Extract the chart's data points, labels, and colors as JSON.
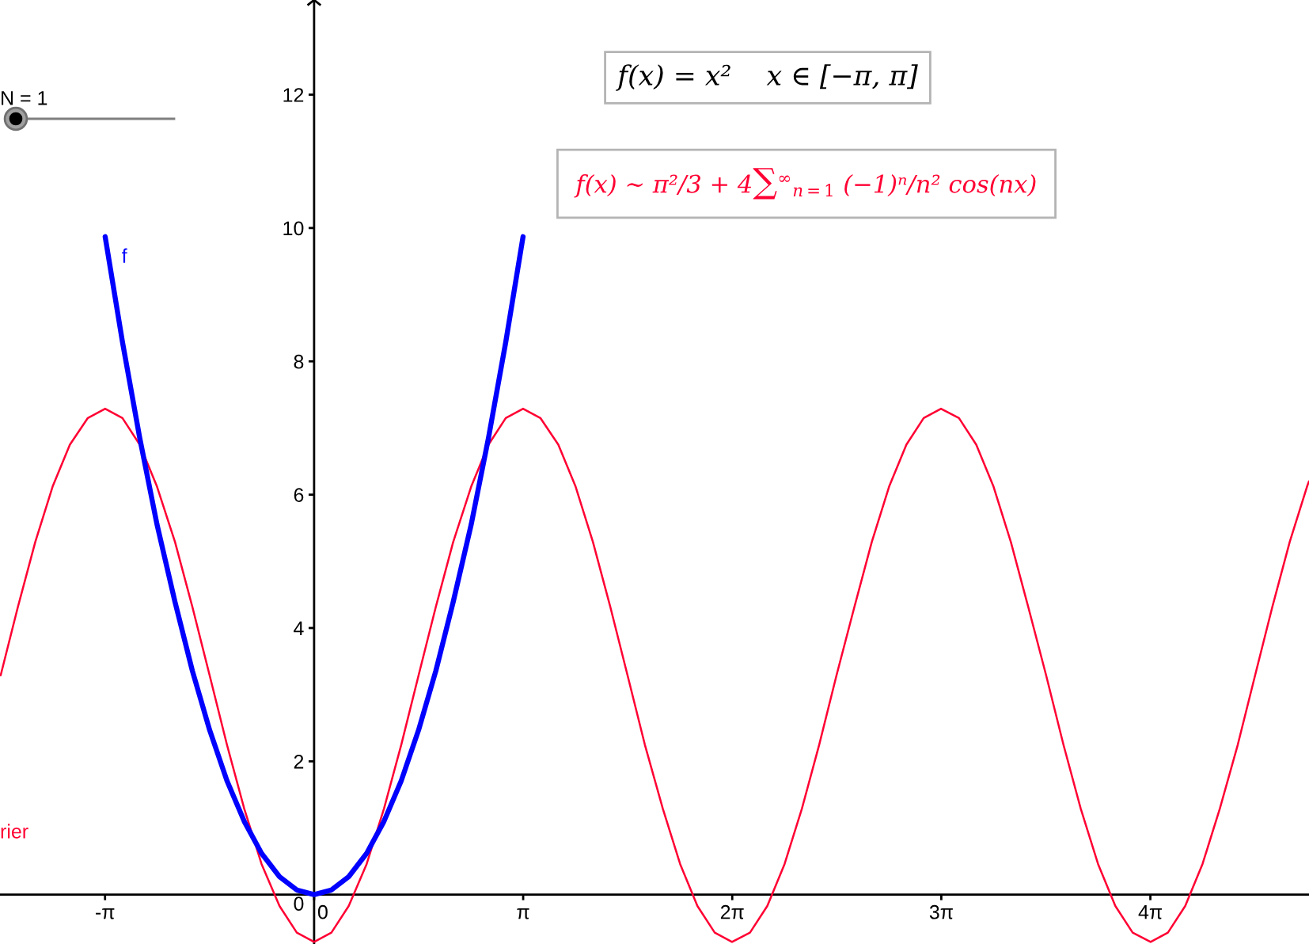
{
  "chart_data": {
    "type": "line",
    "xlim": [
      -4.72,
      14.95
    ],
    "ylim": [
      -0.74,
      13.42
    ],
    "xticks": [
      {
        "value": -3.1416,
        "label": "-π"
      },
      0,
      {
        "value": 3.1416,
        "label": "π"
      },
      {
        "value": 6.2832,
        "label": "2π"
      },
      {
        "value": 9.4248,
        "label": "3π"
      },
      {
        "value": 12.5664,
        "label": "4π"
      }
    ],
    "yticks": [
      0,
      2,
      4,
      6,
      8,
      10,
      12
    ],
    "series": [
      {
        "color": "#ff0033",
        "x": [
          -4.71,
          -4.45,
          -4.19,
          -3.93,
          -3.67,
          -3.4,
          -3.14,
          -2.88,
          -2.62,
          -2.36,
          -2.09,
          -1.83,
          -1.57,
          -1.31,
          -1.05,
          -0.79,
          -0.52,
          -0.26,
          0,
          0.26,
          0.52,
          0.79,
          1.05,
          1.31,
          1.57,
          1.83,
          2.09,
          2.36,
          2.62,
          2.88,
          3.14,
          3.4,
          3.67,
          3.93,
          4.19,
          4.45,
          4.71,
          4.97,
          5.24,
          5.5,
          5.76,
          6.02,
          6.28,
          6.55,
          6.81,
          7.07,
          7.33,
          7.59,
          7.85,
          8.12,
          8.38,
          8.64,
          8.9,
          9.16,
          9.42,
          9.69,
          9.95,
          10.21,
          10.47,
          10.73,
          11.0,
          11.26,
          11.52,
          11.78,
          12.04,
          12.3,
          12.57,
          12.83,
          13.09,
          13.35,
          13.61,
          13.88,
          14.14,
          14.4,
          14.66,
          14.92,
          14.95
        ],
        "values": [
          3.29,
          4.32,
          5.29,
          6.12,
          6.75,
          7.15,
          7.29,
          7.15,
          6.75,
          6.12,
          5.29,
          4.32,
          3.29,
          2.25,
          1.29,
          0.46,
          -0.17,
          -0.57,
          -0.71,
          -0.57,
          -0.17,
          0.46,
          1.29,
          2.25,
          3.29,
          4.32,
          5.29,
          6.12,
          6.75,
          7.15,
          7.29,
          7.15,
          6.75,
          6.12,
          5.29,
          4.32,
          3.29,
          2.25,
          1.29,
          0.46,
          -0.17,
          -0.57,
          -0.71,
          -0.57,
          -0.17,
          0.46,
          1.29,
          2.25,
          3.29,
          4.32,
          5.29,
          6.12,
          6.75,
          7.15,
          7.29,
          7.15,
          6.75,
          6.12,
          5.29,
          4.32,
          3.29,
          2.25,
          1.29,
          0.46,
          -0.17,
          -0.57,
          -0.71,
          -0.57,
          -0.17,
          0.46,
          1.29,
          2.25,
          3.29,
          4.32,
          5.29,
          6.12,
          6.2
        ]
      },
      {
        "name": "f",
        "color": "#0000ff",
        "x": [
          -3.14,
          -2.88,
          -2.62,
          -2.36,
          -2.09,
          -1.83,
          -1.57,
          -1.31,
          -1.05,
          -0.79,
          -0.52,
          -0.26,
          0,
          0.26,
          0.52,
          0.79,
          1.05,
          1.31,
          1.57,
          1.83,
          2.09,
          2.36,
          2.62,
          2.88,
          3.14
        ],
        "values": [
          9.87,
          8.29,
          6.85,
          5.55,
          4.39,
          3.36,
          2.47,
          1.71,
          1.1,
          0.62,
          0.27,
          0.07,
          0,
          0.07,
          0.27,
          0.62,
          1.1,
          1.71,
          2.47,
          3.36,
          4.39,
          5.55,
          6.85,
          8.29,
          9.87
        ]
      }
    ],
    "annotations": [
      "f(x) = x²    x ∈ [−π, π]",
      "f(x) ∼ π²/3 + 4∑$^{∞}$$_{n=1}$ (−1)ⁿ/n² cos(nx)",
      "N = 1",
      "rier"
    ]
  }
}
